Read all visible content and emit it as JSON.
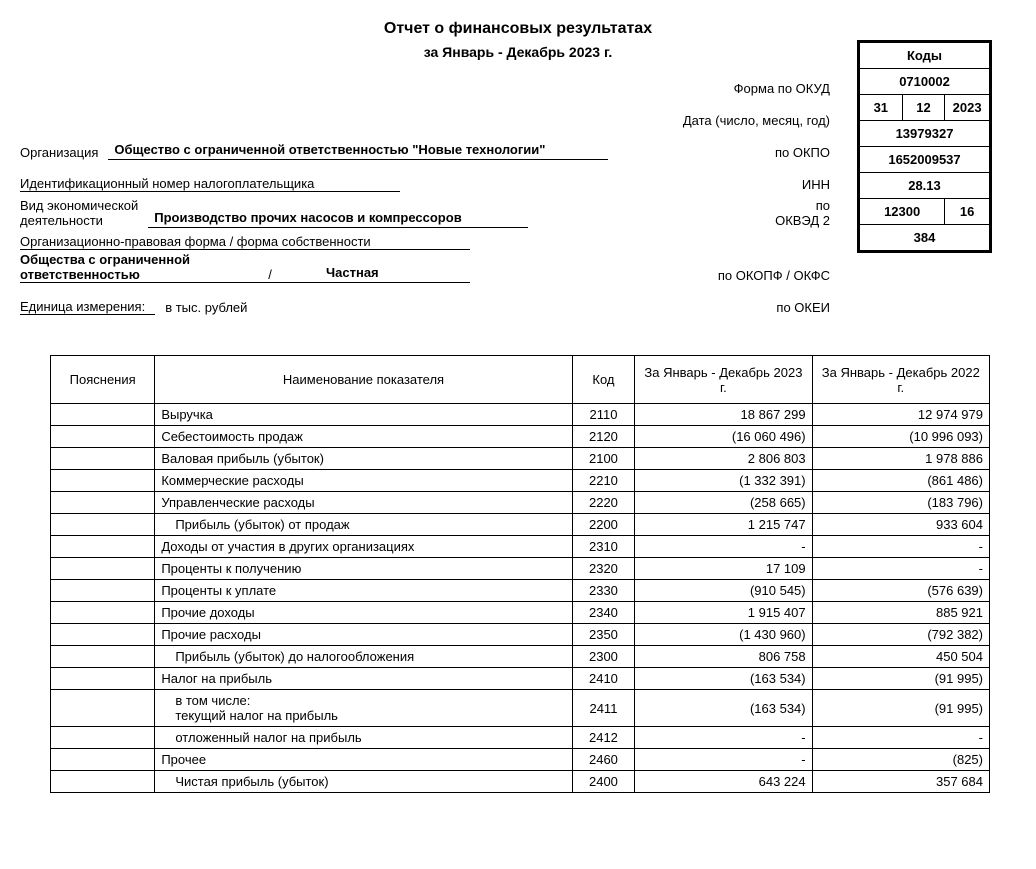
{
  "header": {
    "title": "Отчет о финансовых результатах",
    "subtitle": "за Январь - Декабрь 2023 г."
  },
  "codes_box": {
    "header": "Коды",
    "okud": "0710002",
    "date_day": "31",
    "date_month": "12",
    "date_year": "2023",
    "okpo": "13979327",
    "inn": "1652009537",
    "okved": "28.13",
    "okopf": "12300",
    "okfs": "16",
    "okei": "384"
  },
  "meta": {
    "form_okud_label": "Форма по ОКУД",
    "date_label": "Дата (число, месяц, год)",
    "org_label": "Организация",
    "org_value": "Общество с ограниченной ответственностью \"Новые технологии\"",
    "okpo_label": "по ОКПО",
    "inn_row_label": "Идентификационный номер налогоплательщика",
    "inn_label": "ИНН",
    "activity_label_1": "Вид экономической",
    "activity_label_2": "деятельности",
    "activity_value": "Производство прочих насосов и компрессоров",
    "okved_label_1": "по",
    "okved_label_2": "ОКВЭД 2",
    "legal_form_label": "Организационно-правовая форма / форма собственности",
    "legal_form_value_1": "Общества с ограниченной",
    "legal_form_value_2": "ответственностью",
    "ownership_sep": "/",
    "ownership_value": "Частная",
    "okopf_label": "по ОКОПФ / ОКФС",
    "unit_label": "Единица измерения:",
    "unit_value": "в тыс. рублей",
    "okei_label": "по ОКЕИ"
  },
  "table": {
    "headers": {
      "explanations": "Пояснения",
      "indicator": "Наименование показателя",
      "code": "Код",
      "period_current": "За Январь - Декабрь 2023 г.",
      "period_prev": "За Январь - Декабрь 2022 г."
    },
    "rows": [
      {
        "expl": "",
        "name": "Выручка",
        "indent": 0,
        "code": "2110",
        "cur": "18 867 299",
        "prev": "12 974 979"
      },
      {
        "expl": "",
        "name": "Себестоимость продаж",
        "indent": 0,
        "code": "2120",
        "cur": "(16 060 496)",
        "prev": "(10 996 093)"
      },
      {
        "expl": "",
        "name": "Валовая прибыль (убыток)",
        "indent": 0,
        "code": "2100",
        "cur": "2 806 803",
        "prev": "1 978 886"
      },
      {
        "expl": "",
        "name": "Коммерческие расходы",
        "indent": 0,
        "code": "2210",
        "cur": "(1 332 391)",
        "prev": "(861 486)"
      },
      {
        "expl": "",
        "name": "Управленческие расходы",
        "indent": 0,
        "code": "2220",
        "cur": "(258 665)",
        "prev": "(183 796)"
      },
      {
        "expl": "",
        "name": "Прибыль (убыток) от продаж",
        "indent": 1,
        "code": "2200",
        "cur": "1 215 747",
        "prev": "933 604"
      },
      {
        "expl": "",
        "name": "Доходы от участия в других организациях",
        "indent": 0,
        "code": "2310",
        "cur": "-",
        "prev": "-"
      },
      {
        "expl": "",
        "name": "Проценты к получению",
        "indent": 0,
        "code": "2320",
        "cur": "17 109",
        "prev": "-"
      },
      {
        "expl": "",
        "name": "Проценты к уплате",
        "indent": 0,
        "code": "2330",
        "cur": "(910 545)",
        "prev": "(576 639)"
      },
      {
        "expl": "",
        "name": "Прочие доходы",
        "indent": 0,
        "code": "2340",
        "cur": "1 915 407",
        "prev": "885 921"
      },
      {
        "expl": "",
        "name": "Прочие расходы",
        "indent": 0,
        "code": "2350",
        "cur": "(1 430 960)",
        "prev": "(792 382)"
      },
      {
        "expl": "",
        "name": "Прибыль (убыток) до налогообложения",
        "indent": 1,
        "code": "2300",
        "cur": "806 758",
        "prev": "450 504"
      },
      {
        "expl": "",
        "name": "Налог на прибыль",
        "indent": 0,
        "code": "2410",
        "cur": "(163 534)",
        "prev": "(91 995)"
      },
      {
        "expl": "",
        "name": "в том числе:\nтекущий налог на прибыль",
        "indent": 1,
        "code": "2411",
        "cur": "(163 534)",
        "prev": "(91 995)"
      },
      {
        "expl": "",
        "name": "отложенный налог на прибыль",
        "indent": 1,
        "code": "2412",
        "cur": "-",
        "prev": "-"
      },
      {
        "expl": "",
        "name": "Прочее",
        "indent": 0,
        "code": "2460",
        "cur": "-",
        "prev": "(825)"
      },
      {
        "expl": "",
        "name": "Чистая прибыль (убыток)",
        "indent": 1,
        "code": "2400",
        "cur": "643 224",
        "prev": "357 684"
      }
    ]
  }
}
